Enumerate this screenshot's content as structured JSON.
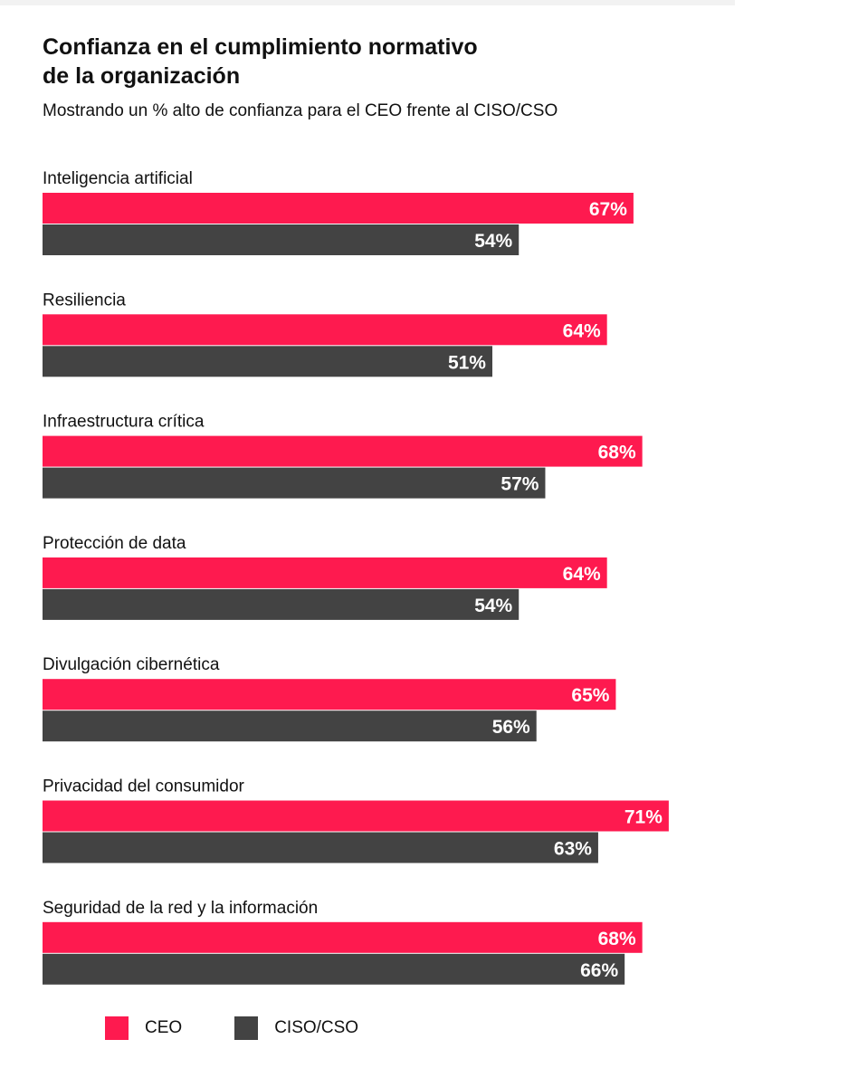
{
  "title_line1": "Confianza en el cumplimiento normativo",
  "title_line2": "de la organización",
  "subtitle": "Mostrando un % alto de confianza para el CEO frente al CISO/CSO",
  "colors": {
    "CEO": "#fe1a4f",
    "CISO/CSO": "#434343"
  },
  "chart_data": {
    "type": "bar",
    "orientation": "horizontal",
    "unit": "%",
    "categories": [
      "Inteligencia artificial",
      "Resiliencia",
      "Infraestructura crítica",
      "Protección de data",
      "Divulgación cibernética",
      "Privacidad del consumidor",
      "Seguridad de la red y la información"
    ],
    "series": [
      {
        "name": "CEO",
        "values": [
          67,
          64,
          68,
          64,
          65,
          71,
          68
        ],
        "labels": [
          "67%",
          "64%",
          "68%",
          "64%",
          "65%",
          "71%",
          "68%"
        ]
      },
      {
        "name": "CISO/CSO",
        "values": [
          54,
          51,
          57,
          54,
          56,
          63,
          66
        ],
        "labels": [
          "54%",
          "51%",
          "57%",
          "54%",
          "56%",
          "63%",
          "66%"
        ]
      }
    ],
    "grid": false,
    "legend_position": "bottom-left"
  }
}
